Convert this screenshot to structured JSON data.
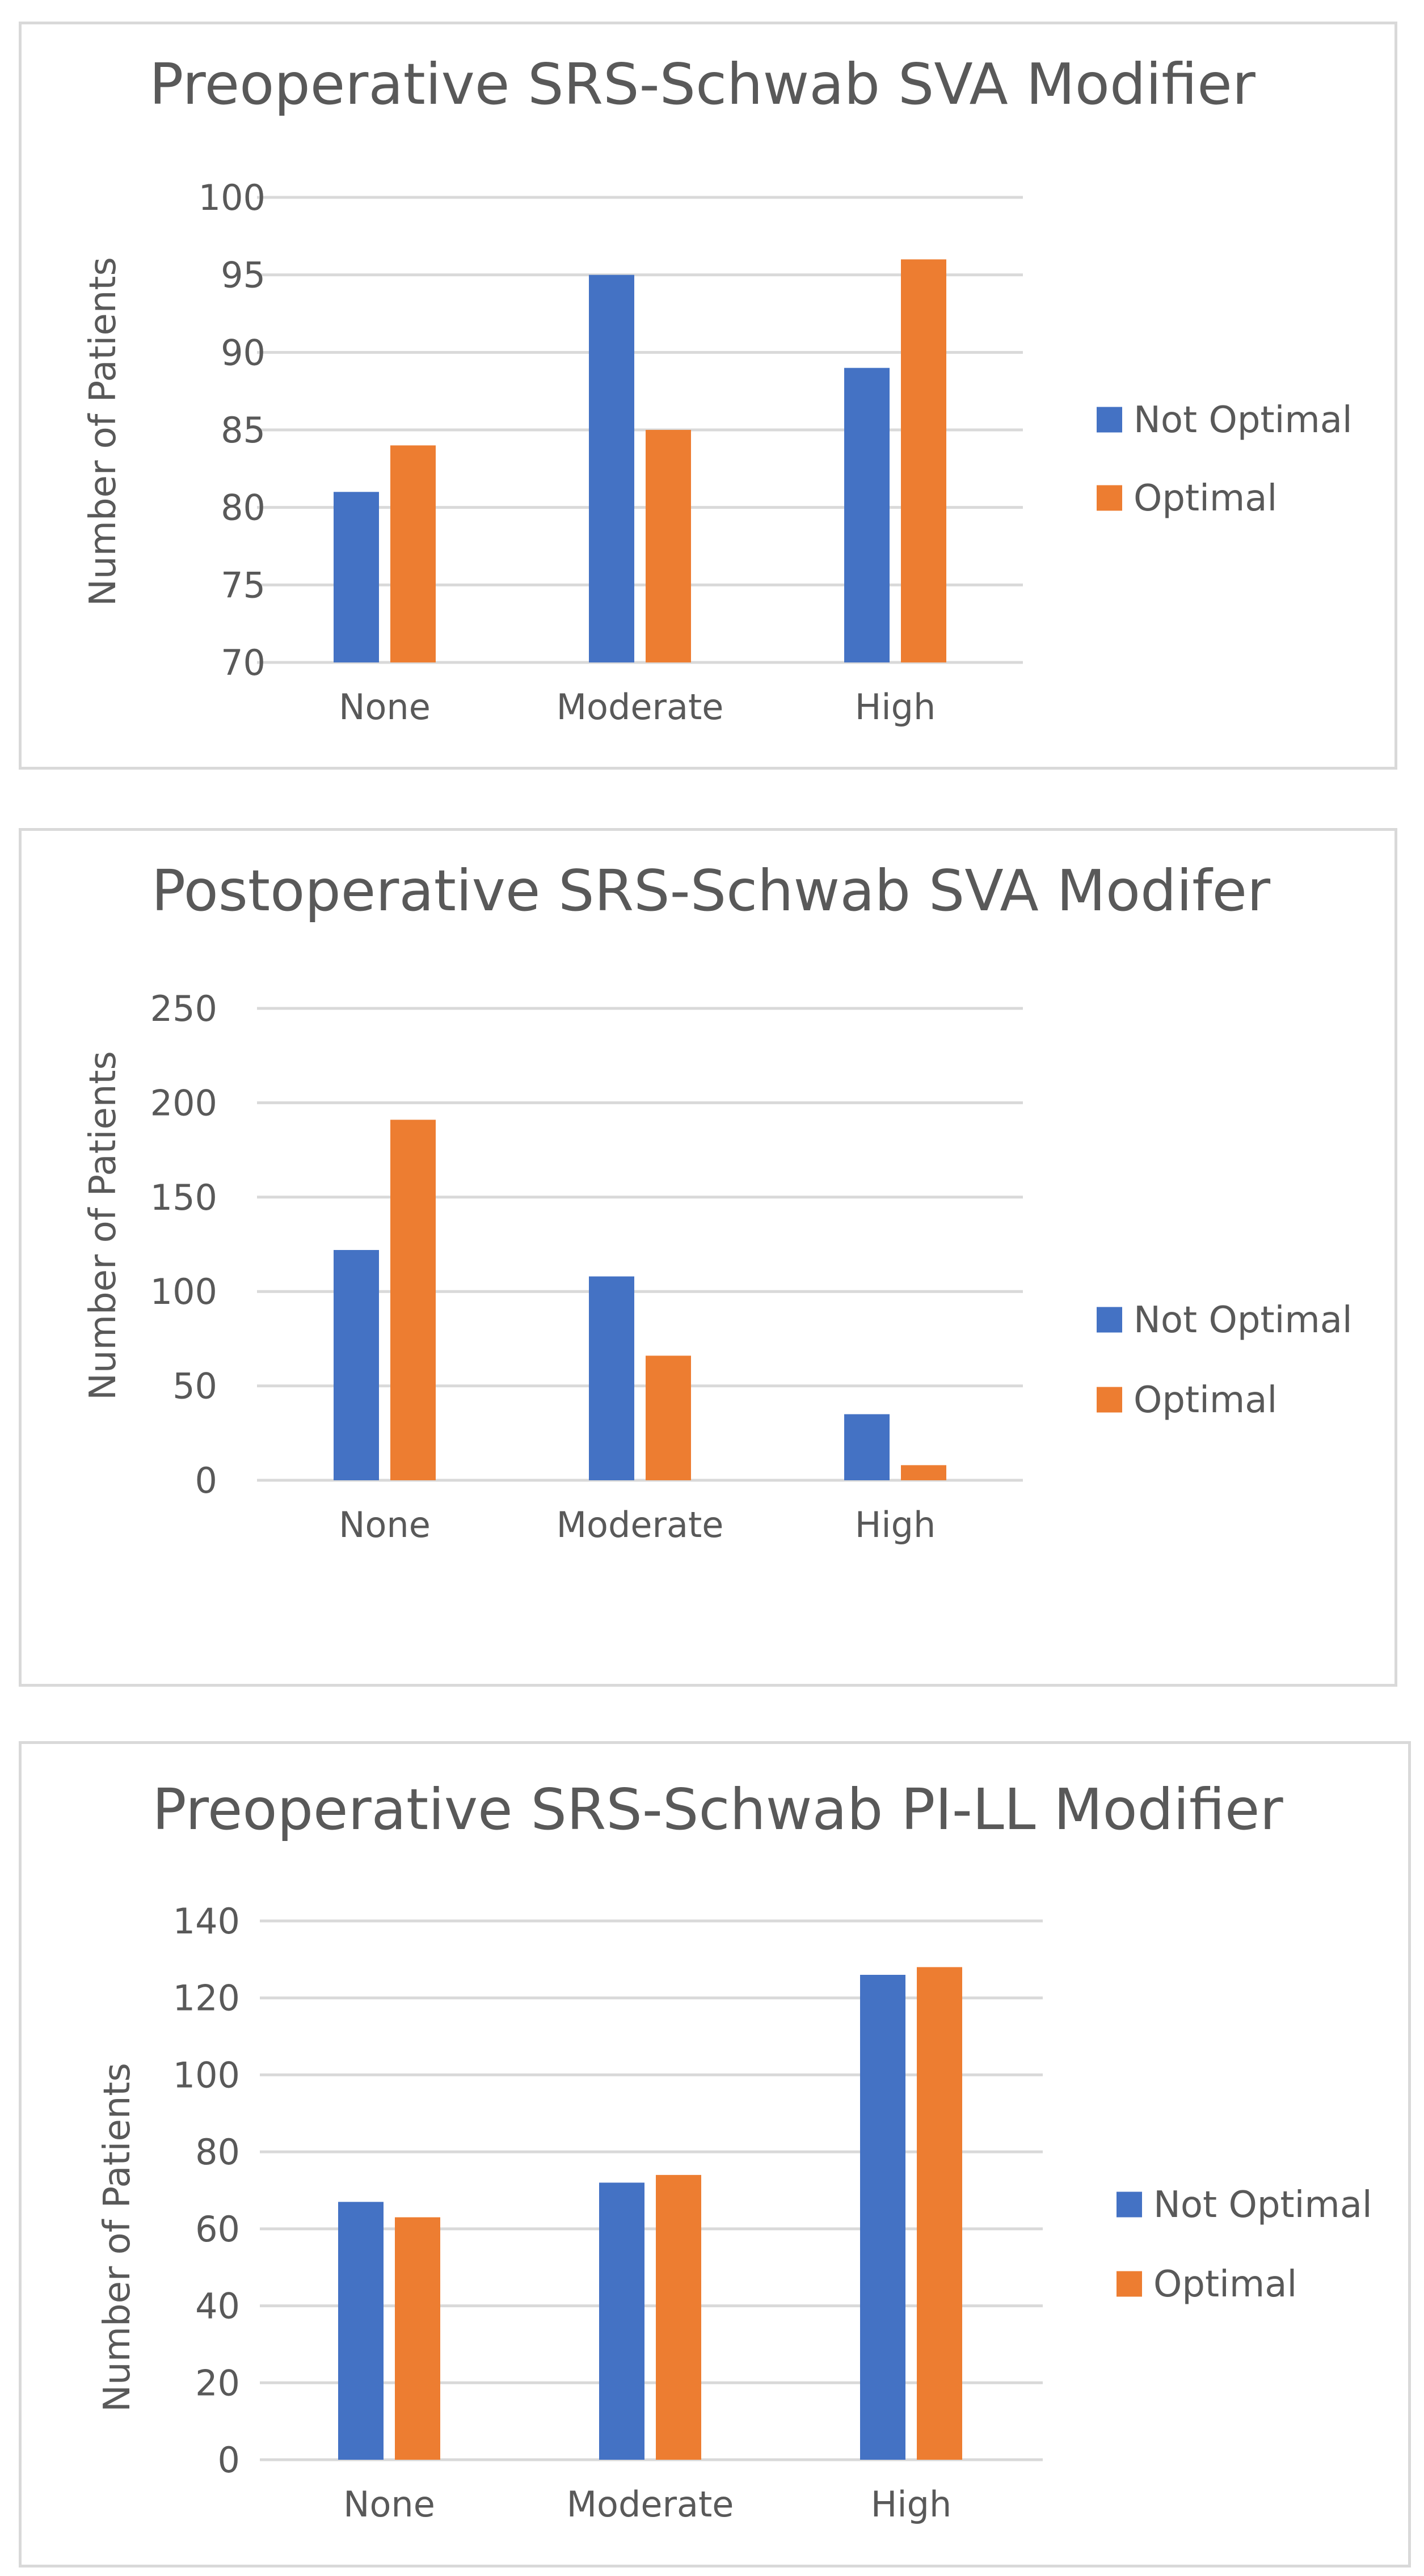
{
  "chart_data": [
    {
      "type": "bar",
      "title": "Preoperative SRS-Schwab SVA Modifier",
      "xlabel": "",
      "ylabel": "Number of Patients",
      "categories": [
        "None",
        "Moderate",
        "High"
      ],
      "ylim": [
        70,
        100
      ],
      "yticks": [
        70,
        75,
        80,
        85,
        90,
        95,
        100
      ],
      "grid": true,
      "legend_position": "right",
      "series": [
        {
          "name": "Not Optimal",
          "color": "#4472c4",
          "values": [
            81,
            95,
            89
          ]
        },
        {
          "name": "Optimal",
          "color": "#ed7d31",
          "values": [
            84,
            85,
            96
          ]
        }
      ]
    },
    {
      "type": "bar",
      "title": "Postoperative SRS-Schwab SVA Modifer",
      "xlabel": "",
      "ylabel": "Number of Patients",
      "categories": [
        "None",
        "Moderate",
        "High"
      ],
      "ylim": [
        0,
        250
      ],
      "yticks": [
        0,
        50,
        100,
        150,
        200,
        250
      ],
      "grid": true,
      "legend_position": "right",
      "series": [
        {
          "name": "Not Optimal",
          "color": "#4472c4",
          "values": [
            122,
            108,
            35
          ]
        },
        {
          "name": "Optimal",
          "color": "#ed7d31",
          "values": [
            191,
            66,
            8
          ]
        }
      ]
    },
    {
      "type": "bar",
      "title": "Preoperative SRS-Schwab PI-LL Modifier",
      "xlabel": "",
      "ylabel": "Number of Patients",
      "categories": [
        "None",
        "Moderate",
        "High"
      ],
      "ylim": [
        0,
        140
      ],
      "yticks": [
        0,
        20,
        40,
        60,
        80,
        100,
        120,
        140
      ],
      "grid": true,
      "legend_position": "right",
      "series": [
        {
          "name": "Not Optimal",
          "color": "#4472c4",
          "values": [
            67,
            72,
            126
          ]
        },
        {
          "name": "Optimal",
          "color": "#ed7d31",
          "values": [
            63,
            74,
            128
          ]
        }
      ]
    }
  ]
}
